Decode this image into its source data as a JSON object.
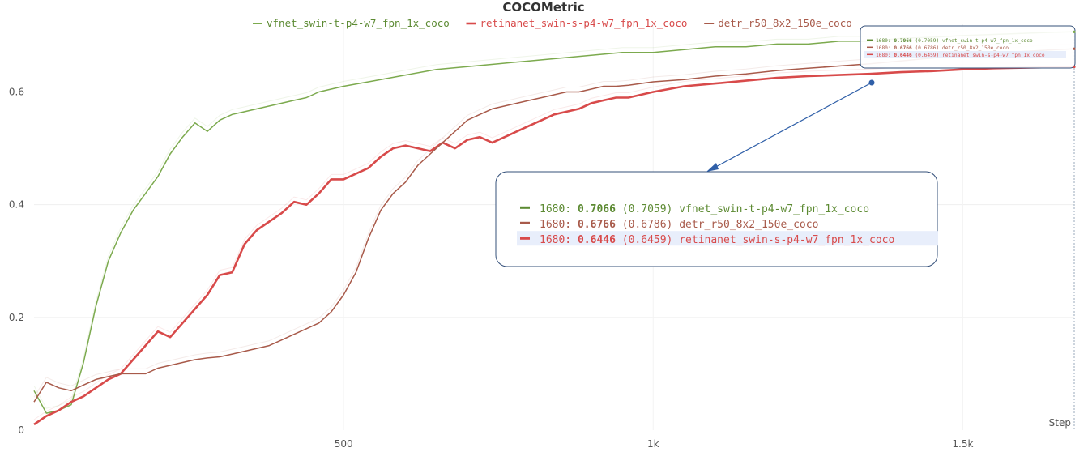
{
  "chart_data": {
    "type": "line",
    "title": "COCOMetric",
    "xlabel": "Step",
    "ylabel": "",
    "xlim": [
      0,
      1680
    ],
    "ylim": [
      0,
      0.72
    ],
    "x_ticks": [
      {
        "v": 500,
        "label": "500"
      },
      {
        "v": 1000,
        "label": "1k"
      },
      {
        "v": 1500,
        "label": "1.5k"
      }
    ],
    "y_ticks": [
      {
        "v": 0,
        "label": "0"
      },
      {
        "v": 0.2,
        "label": "0.2"
      },
      {
        "v": 0.4,
        "label": "0.4"
      },
      {
        "v": 0.6,
        "label": "0.6"
      }
    ],
    "grid": true,
    "legend_position": "top-center",
    "series": [
      {
        "name": "vfnet_swin-t-p4-w7_fpn_1x_coco",
        "color": "#7caa4e",
        "x": [
          0,
          20,
          40,
          60,
          80,
          100,
          120,
          140,
          160,
          180,
          200,
          220,
          240,
          260,
          280,
          300,
          320,
          340,
          360,
          380,
          400,
          420,
          440,
          460,
          500,
          550,
          600,
          650,
          700,
          750,
          800,
          850,
          900,
          950,
          1000,
          1050,
          1100,
          1150,
          1200,
          1250,
          1300,
          1350,
          1400,
          1450,
          1500,
          1550,
          1600,
          1650,
          1680
        ],
        "values": [
          0.07,
          0.03,
          0.035,
          0.045,
          0.12,
          0.22,
          0.3,
          0.35,
          0.39,
          0.42,
          0.45,
          0.49,
          0.52,
          0.545,
          0.53,
          0.55,
          0.56,
          0.565,
          0.57,
          0.575,
          0.58,
          0.585,
          0.59,
          0.6,
          0.61,
          0.62,
          0.63,
          0.64,
          0.645,
          0.65,
          0.655,
          0.66,
          0.665,
          0.67,
          0.67,
          0.675,
          0.68,
          0.68,
          0.685,
          0.685,
          0.69,
          0.69,
          0.695,
          0.697,
          0.7,
          0.702,
          0.704,
          0.706,
          0.7066
        ]
      },
      {
        "name": "retinanet_swin-s-p4-w7_fpn_1x_coco",
        "color": "#d84a4a",
        "x": [
          0,
          20,
          40,
          60,
          80,
          100,
          120,
          140,
          160,
          180,
          200,
          220,
          240,
          260,
          280,
          300,
          320,
          340,
          360,
          380,
          400,
          420,
          440,
          460,
          480,
          500,
          520,
          540,
          560,
          580,
          600,
          620,
          640,
          660,
          680,
          700,
          720,
          740,
          760,
          780,
          800,
          820,
          840,
          860,
          880,
          900,
          920,
          940,
          960,
          980,
          1000,
          1050,
          1100,
          1150,
          1200,
          1250,
          1300,
          1350,
          1400,
          1450,
          1500,
          1550,
          1600,
          1650,
          1680
        ],
        "values": [
          0.01,
          0.025,
          0.035,
          0.05,
          0.06,
          0.075,
          0.09,
          0.1,
          0.125,
          0.15,
          0.175,
          0.165,
          0.19,
          0.215,
          0.24,
          0.275,
          0.28,
          0.33,
          0.355,
          0.37,
          0.385,
          0.405,
          0.4,
          0.42,
          0.445,
          0.445,
          0.455,
          0.465,
          0.485,
          0.5,
          0.505,
          0.5,
          0.495,
          0.51,
          0.5,
          0.515,
          0.52,
          0.51,
          0.52,
          0.53,
          0.54,
          0.55,
          0.56,
          0.565,
          0.57,
          0.58,
          0.585,
          0.59,
          0.59,
          0.595,
          0.6,
          0.61,
          0.615,
          0.62,
          0.625,
          0.628,
          0.63,
          0.632,
          0.635,
          0.637,
          0.64,
          0.642,
          0.643,
          0.644,
          0.6446
        ]
      },
      {
        "name": "detr_r50_8x2_150e_coco",
        "color": "#a85a4a",
        "x": [
          0,
          20,
          40,
          60,
          80,
          100,
          120,
          140,
          160,
          180,
          200,
          220,
          240,
          260,
          280,
          300,
          320,
          340,
          360,
          380,
          400,
          420,
          440,
          460,
          480,
          500,
          520,
          540,
          560,
          580,
          600,
          620,
          640,
          660,
          680,
          700,
          720,
          740,
          760,
          780,
          800,
          820,
          840,
          860,
          880,
          900,
          920,
          940,
          960,
          980,
          1000,
          1050,
          1100,
          1150,
          1200,
          1250,
          1300,
          1350,
          1400,
          1450,
          1500,
          1550,
          1600,
          1650,
          1680
        ],
        "values": [
          0.05,
          0.085,
          0.075,
          0.07,
          0.08,
          0.09,
          0.095,
          0.1,
          0.1,
          0.1,
          0.11,
          0.115,
          0.12,
          0.125,
          0.128,
          0.13,
          0.135,
          0.14,
          0.145,
          0.15,
          0.16,
          0.17,
          0.18,
          0.19,
          0.21,
          0.24,
          0.28,
          0.34,
          0.39,
          0.42,
          0.44,
          0.47,
          0.49,
          0.51,
          0.53,
          0.55,
          0.56,
          0.57,
          0.575,
          0.58,
          0.585,
          0.59,
          0.595,
          0.6,
          0.6,
          0.605,
          0.61,
          0.61,
          0.612,
          0.615,
          0.618,
          0.622,
          0.628,
          0.632,
          0.638,
          0.642,
          0.646,
          0.65,
          0.655,
          0.66,
          0.665,
          0.668,
          0.672,
          0.675,
          0.6766
        ]
      }
    ],
    "tooltip": {
      "rows": [
        {
          "step": "1680:",
          "value": "0.7066",
          "smoothed": "(0.7059)",
          "name": "vfnet_swin-t-p4-w7_fpn_1x_coco",
          "color": "#5c8a32",
          "highlight": false
        },
        {
          "step": "1680:",
          "value": "0.6766",
          "smoothed": "(0.6786)",
          "name": "detr_r50_8x2_150e_coco",
          "color": "#a85a4a",
          "highlight": false
        },
        {
          "step": "1680:",
          "value": "0.6446",
          "smoothed": "(0.6459)",
          "name": "retinanet_swin-s-p4-w7_fpn_1x_coco",
          "color": "#d84a4a",
          "highlight": true
        }
      ]
    }
  },
  "legend_order": [
    0,
    1,
    2
  ]
}
